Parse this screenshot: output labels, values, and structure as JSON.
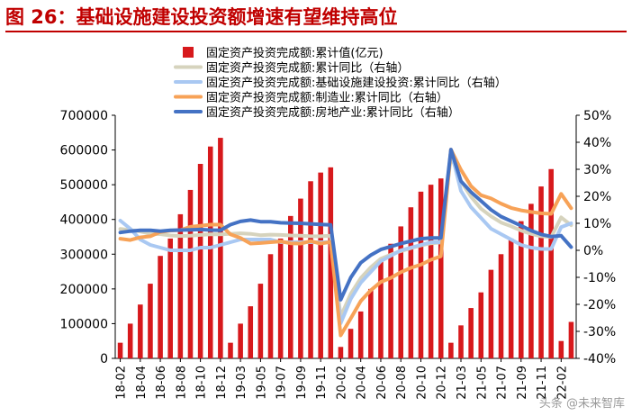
{
  "title": "图 26：基础设施建设投资额增速有望维持高位",
  "watermark": "头条 @未来智库",
  "chart_data": {
    "type": "bar+line",
    "x": [
      "18-02",
      "18-03",
      "18-04",
      "18-05",
      "18-06",
      "18-07",
      "18-08",
      "18-09",
      "18-10",
      "18-11",
      "18-12",
      "19-02",
      "19-03",
      "19-04",
      "19-05",
      "19-06",
      "19-07",
      "19-08",
      "19-09",
      "19-10",
      "19-11",
      "19-12",
      "20-02",
      "20-03",
      "20-04",
      "20-05",
      "20-06",
      "20-07",
      "20-08",
      "20-09",
      "20-10",
      "20-11",
      "20-12",
      "21-02",
      "21-03",
      "21-04",
      "21-05",
      "21-06",
      "21-07",
      "21-08",
      "21-09",
      "21-10",
      "21-11",
      "21-12",
      "22-02",
      "22-03"
    ],
    "xtick_labels": [
      "18-02",
      "18-04",
      "18-06",
      "18-08",
      "18-10",
      "18-12",
      "19-03",
      "19-05",
      "19-07",
      "19-09",
      "19-11",
      "20-02",
      "20-04",
      "20-06",
      "20-08",
      "20-10",
      "20-12",
      "21-03",
      "21-05",
      "21-07",
      "21-09",
      "21-11",
      "22-02"
    ],
    "xtick_indices": [
      0,
      2,
      4,
      6,
      8,
      10,
      12,
      14,
      16,
      18,
      20,
      22,
      24,
      26,
      28,
      30,
      32,
      34,
      36,
      38,
      40,
      42,
      44
    ],
    "ylim_left": [
      0,
      700000
    ],
    "yticks_left": [
      "0",
      "100000",
      "200000",
      "300000",
      "400000",
      "500000",
      "600000",
      "700000"
    ],
    "ylim_right": [
      -40,
      50
    ],
    "yticks_right": [
      "-40%",
      "-30%",
      "-20%",
      "-10%",
      "0%",
      "10%",
      "20%",
      "30%",
      "40%",
      "50%"
    ],
    "legend_position": "top",
    "series": [
      {
        "name": "固定资产投资完成额:累计值(亿元)",
        "type": "bar",
        "axis": "left",
        "color": "#d7191c",
        "values": [
          45000,
          100000,
          155000,
          215000,
          295000,
          345000,
          415000,
          485000,
          560000,
          610000,
          635000,
          45000,
          100000,
          150000,
          215000,
          300000,
          345000,
          410000,
          460000,
          510000,
          535000,
          550000,
          33000,
          85000,
          135000,
          200000,
          280000,
          330000,
          380000,
          435000,
          480000,
          500000,
          518000,
          45000,
          95000,
          145000,
          190000,
          255000,
          300000,
          345000,
          395000,
          445000,
          495000,
          545000,
          50000,
          105000
        ]
      },
      {
        "name": "固定资产投资完成额:累计同比（右轴）",
        "type": "line",
        "axis": "right",
        "color": "#d6d3bd",
        "values": [
          7.9,
          7.5,
          7,
          6.1,
          6,
          5.5,
          5.3,
          5.4,
          5.7,
          5.9,
          5.9,
          6.1,
          6.3,
          6.1,
          5.6,
          5.8,
          5.7,
          5.5,
          5.4,
          5.2,
          5.2,
          5.4,
          -24.5,
          -16.1,
          -10.3,
          -6.3,
          -3.1,
          -1.6,
          -0.3,
          0.8,
          1.8,
          2.6,
          2.9,
          35,
          25.6,
          19.9,
          15.4,
          12.6,
          10.3,
          8.9,
          7.3,
          6.1,
          5.2,
          4.9,
          12.2,
          9.3
        ]
      },
      {
        "name": "固定资产投资完成额:基础设施建设投资:累计同比（右轴）",
        "type": "line",
        "axis": "right",
        "color": "#a9c8f2",
        "values": [
          11,
          8,
          4,
          2,
          1,
          0,
          0,
          0,
          1,
          1,
          2,
          3,
          4,
          4,
          4,
          4,
          3,
          3,
          3,
          3,
          3,
          3,
          -27,
          -18,
          -12,
          -8,
          -4,
          -2,
          0,
          1,
          2,
          3,
          3,
          37,
          22,
          16,
          12,
          8,
          6,
          4,
          2,
          1,
          0.5,
          0.5,
          8.6,
          10
        ]
      },
      {
        "name": "固定资产投资完成额:制造业:累计同比（右轴）",
        "type": "line",
        "axis": "right",
        "color": "#f7a257",
        "values": [
          4.3,
          3.8,
          4.8,
          5.2,
          6.8,
          7.3,
          7.5,
          8.7,
          9.1,
          9.5,
          9.5,
          5.9,
          4.6,
          2.5,
          2.7,
          3.0,
          3.3,
          2.6,
          2.5,
          3.4,
          2.5,
          3.1,
          -31.5,
          -25.2,
          -18.8,
          -14.8,
          -11.7,
          -10.2,
          -8.1,
          -6.5,
          -5.3,
          -3.5,
          -2.2,
          37.3,
          29.8,
          23.8,
          20.4,
          19.2,
          17.3,
          15.7,
          14.8,
          14.2,
          13.7,
          13.5,
          20.9,
          15.6
        ]
      },
      {
        "name": "固定资产投资完成额:房地产业:累计同比（右轴）",
        "type": "line",
        "axis": "right",
        "color": "#4472c4",
        "values": [
          6.6,
          7.1,
          7.4,
          7.4,
          7.1,
          7.4,
          7.5,
          7.6,
          7.7,
          7.5,
          7.4,
          9.5,
          10.7,
          11.2,
          10.6,
          10.6,
          10.2,
          10.1,
          10,
          9.8,
          9.6,
          9.4,
          -18.3,
          -10.1,
          -4.6,
          -1.8,
          0.3,
          1.4,
          2.5,
          3.4,
          4.3,
          4.6,
          4.6,
          37.3,
          25.6,
          21.6,
          18.3,
          15,
          12.5,
          10.8,
          9.1,
          7.3,
          5.9,
          5.1,
          5.4,
          1.2
        ]
      }
    ]
  }
}
